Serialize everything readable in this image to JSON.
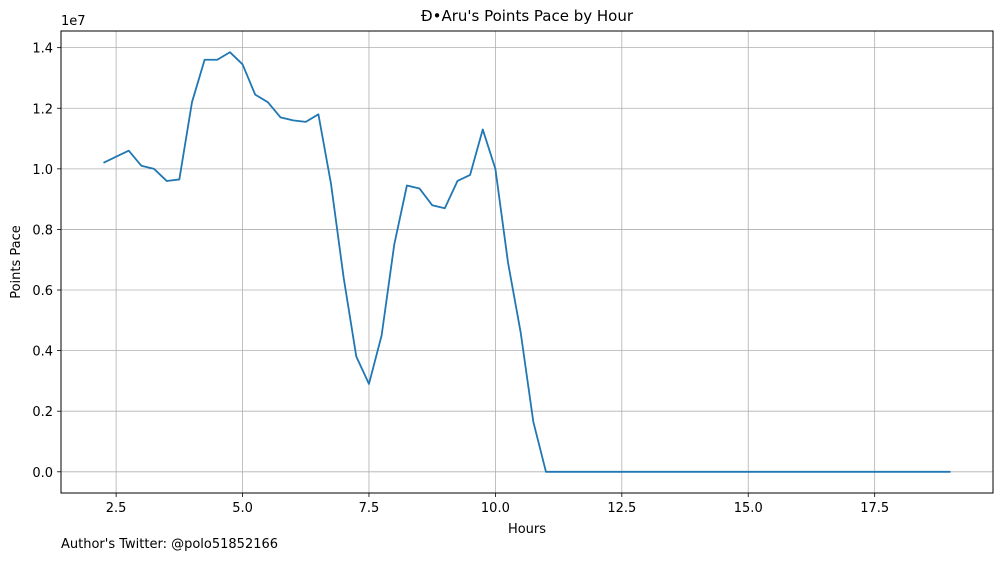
{
  "chart_data": {
    "type": "line",
    "title": "Ð•Aru's Points Pace by Hour",
    "xlabel": "Hours",
    "ylabel": "Points Pace",
    "y_offset_text": "1e7",
    "xlim": [
      1.41,
      19.84
    ],
    "ylim": [
      -0.07,
      1.455
    ],
    "grid": true,
    "line_color": "#1f77b4",
    "x_ticks": [
      2.5,
      5.0,
      7.5,
      10.0,
      12.5,
      15.0,
      17.5
    ],
    "x_tick_labels": [
      "2.5",
      "5.0",
      "7.5",
      "10.0",
      "12.5",
      "15.0",
      "17.5"
    ],
    "y_ticks": [
      0.0,
      0.2,
      0.4,
      0.6,
      0.8,
      1.0,
      1.2,
      1.4
    ],
    "y_tick_labels": [
      "0.0",
      "0.2",
      "0.4",
      "0.6",
      "0.8",
      "1.0",
      "1.2",
      "1.4"
    ],
    "series": [
      {
        "x": [
          2.25,
          2.5,
          2.75,
          3.0,
          3.25,
          3.5,
          3.75,
          4.0,
          4.25,
          4.5,
          4.75,
          5.0,
          5.25,
          5.5,
          5.75,
          6.0,
          6.25,
          6.5,
          6.75,
          7.0,
          7.25,
          7.5,
          7.75,
          8.0,
          8.25,
          8.5,
          8.75,
          9.0,
          9.25,
          9.5,
          9.75,
          10.0,
          10.25,
          10.5,
          10.75,
          11.0,
          11.25,
          11.5,
          11.75,
          12.0,
          12.25,
          12.5,
          12.75,
          13.0,
          13.25,
          13.5,
          13.75,
          14.0,
          14.25,
          14.5,
          14.75,
          15.0,
          15.25,
          15.5,
          15.75,
          16.0,
          16.25,
          16.5,
          16.75,
          17.0,
          17.25,
          17.5,
          17.75,
          18.0,
          18.25,
          18.5,
          18.75,
          19.0
        ],
        "values": [
          1.02,
          1.04,
          1.06,
          1.01,
          1.0,
          0.96,
          0.965,
          1.22,
          1.36,
          1.36,
          1.385,
          1.345,
          1.245,
          1.22,
          1.17,
          1.16,
          1.155,
          1.18,
          0.95,
          0.64,
          0.38,
          0.29,
          0.45,
          0.75,
          0.945,
          0.935,
          0.88,
          0.87,
          0.96,
          0.98,
          1.13,
          1.0,
          0.69,
          0.46,
          0.165,
          0.0,
          0.0,
          0.0,
          0.0,
          0.0,
          0.0,
          0.0,
          0.0,
          0.0,
          0.0,
          0.0,
          0.0,
          0.0,
          0.0,
          0.0,
          0.0,
          0.0,
          0.0,
          0.0,
          0.0,
          0.0,
          0.0,
          0.0,
          0.0,
          0.0,
          0.0,
          0.0,
          0.0,
          0.0,
          0.0,
          0.0,
          0.0,
          0.0
        ]
      }
    ]
  },
  "footnote": "Author's Twitter: @polo51852166"
}
